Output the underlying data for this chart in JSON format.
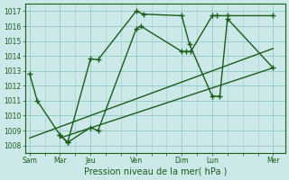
{
  "title": "Pression niveau de la mer( hPa )",
  "bg_color": "#cce8e8",
  "grid_color": "#99cccc",
  "line_color": "#1a5c1a",
  "ylim": [
    1007.5,
    1017.5
  ],
  "yticks": [
    1008,
    1009,
    1010,
    1011,
    1012,
    1013,
    1014,
    1015,
    1016,
    1017
  ],
  "day_labels": [
    "Sam",
    "Mar",
    "Jeu",
    "Ven",
    "Dim",
    "Lun",
    "Mer"
  ],
  "day_positions": [
    0,
    2,
    4,
    7,
    10,
    12,
    16
  ],
  "xlim": [
    -0.3,
    16.8
  ],
  "line1_x": [
    0,
    0.5,
    2,
    2.5,
    4,
    4.5,
    7,
    7.3,
    10,
    10.3,
    10.6,
    12,
    12.3,
    13,
    16
  ],
  "line1_y": [
    1012.8,
    1011.0,
    1008.7,
    1008.2,
    1009.2,
    1009.0,
    1015.8,
    1016.0,
    1014.3,
    1014.3,
    1014.3,
    1016.7,
    1016.7,
    1016.7,
    1016.7
  ],
  "line2_x": [
    2,
    2.5,
    4,
    4.5,
    7,
    7.5,
    10,
    10.5,
    12,
    12.5,
    13,
    16
  ],
  "line2_y": [
    1008.7,
    1008.2,
    1013.8,
    1013.75,
    1017.0,
    1016.8,
    1016.7,
    1014.8,
    1011.3,
    1011.3,
    1016.5,
    1013.2
  ],
  "trend1_x": [
    0,
    16
  ],
  "trend1_y": [
    1008.5,
    1014.5
  ],
  "trend2_x": [
    2,
    16
  ],
  "trend2_y": [
    1008.5,
    1013.2
  ],
  "marker": "+",
  "marker_size": 4,
  "linewidth": 1.0
}
